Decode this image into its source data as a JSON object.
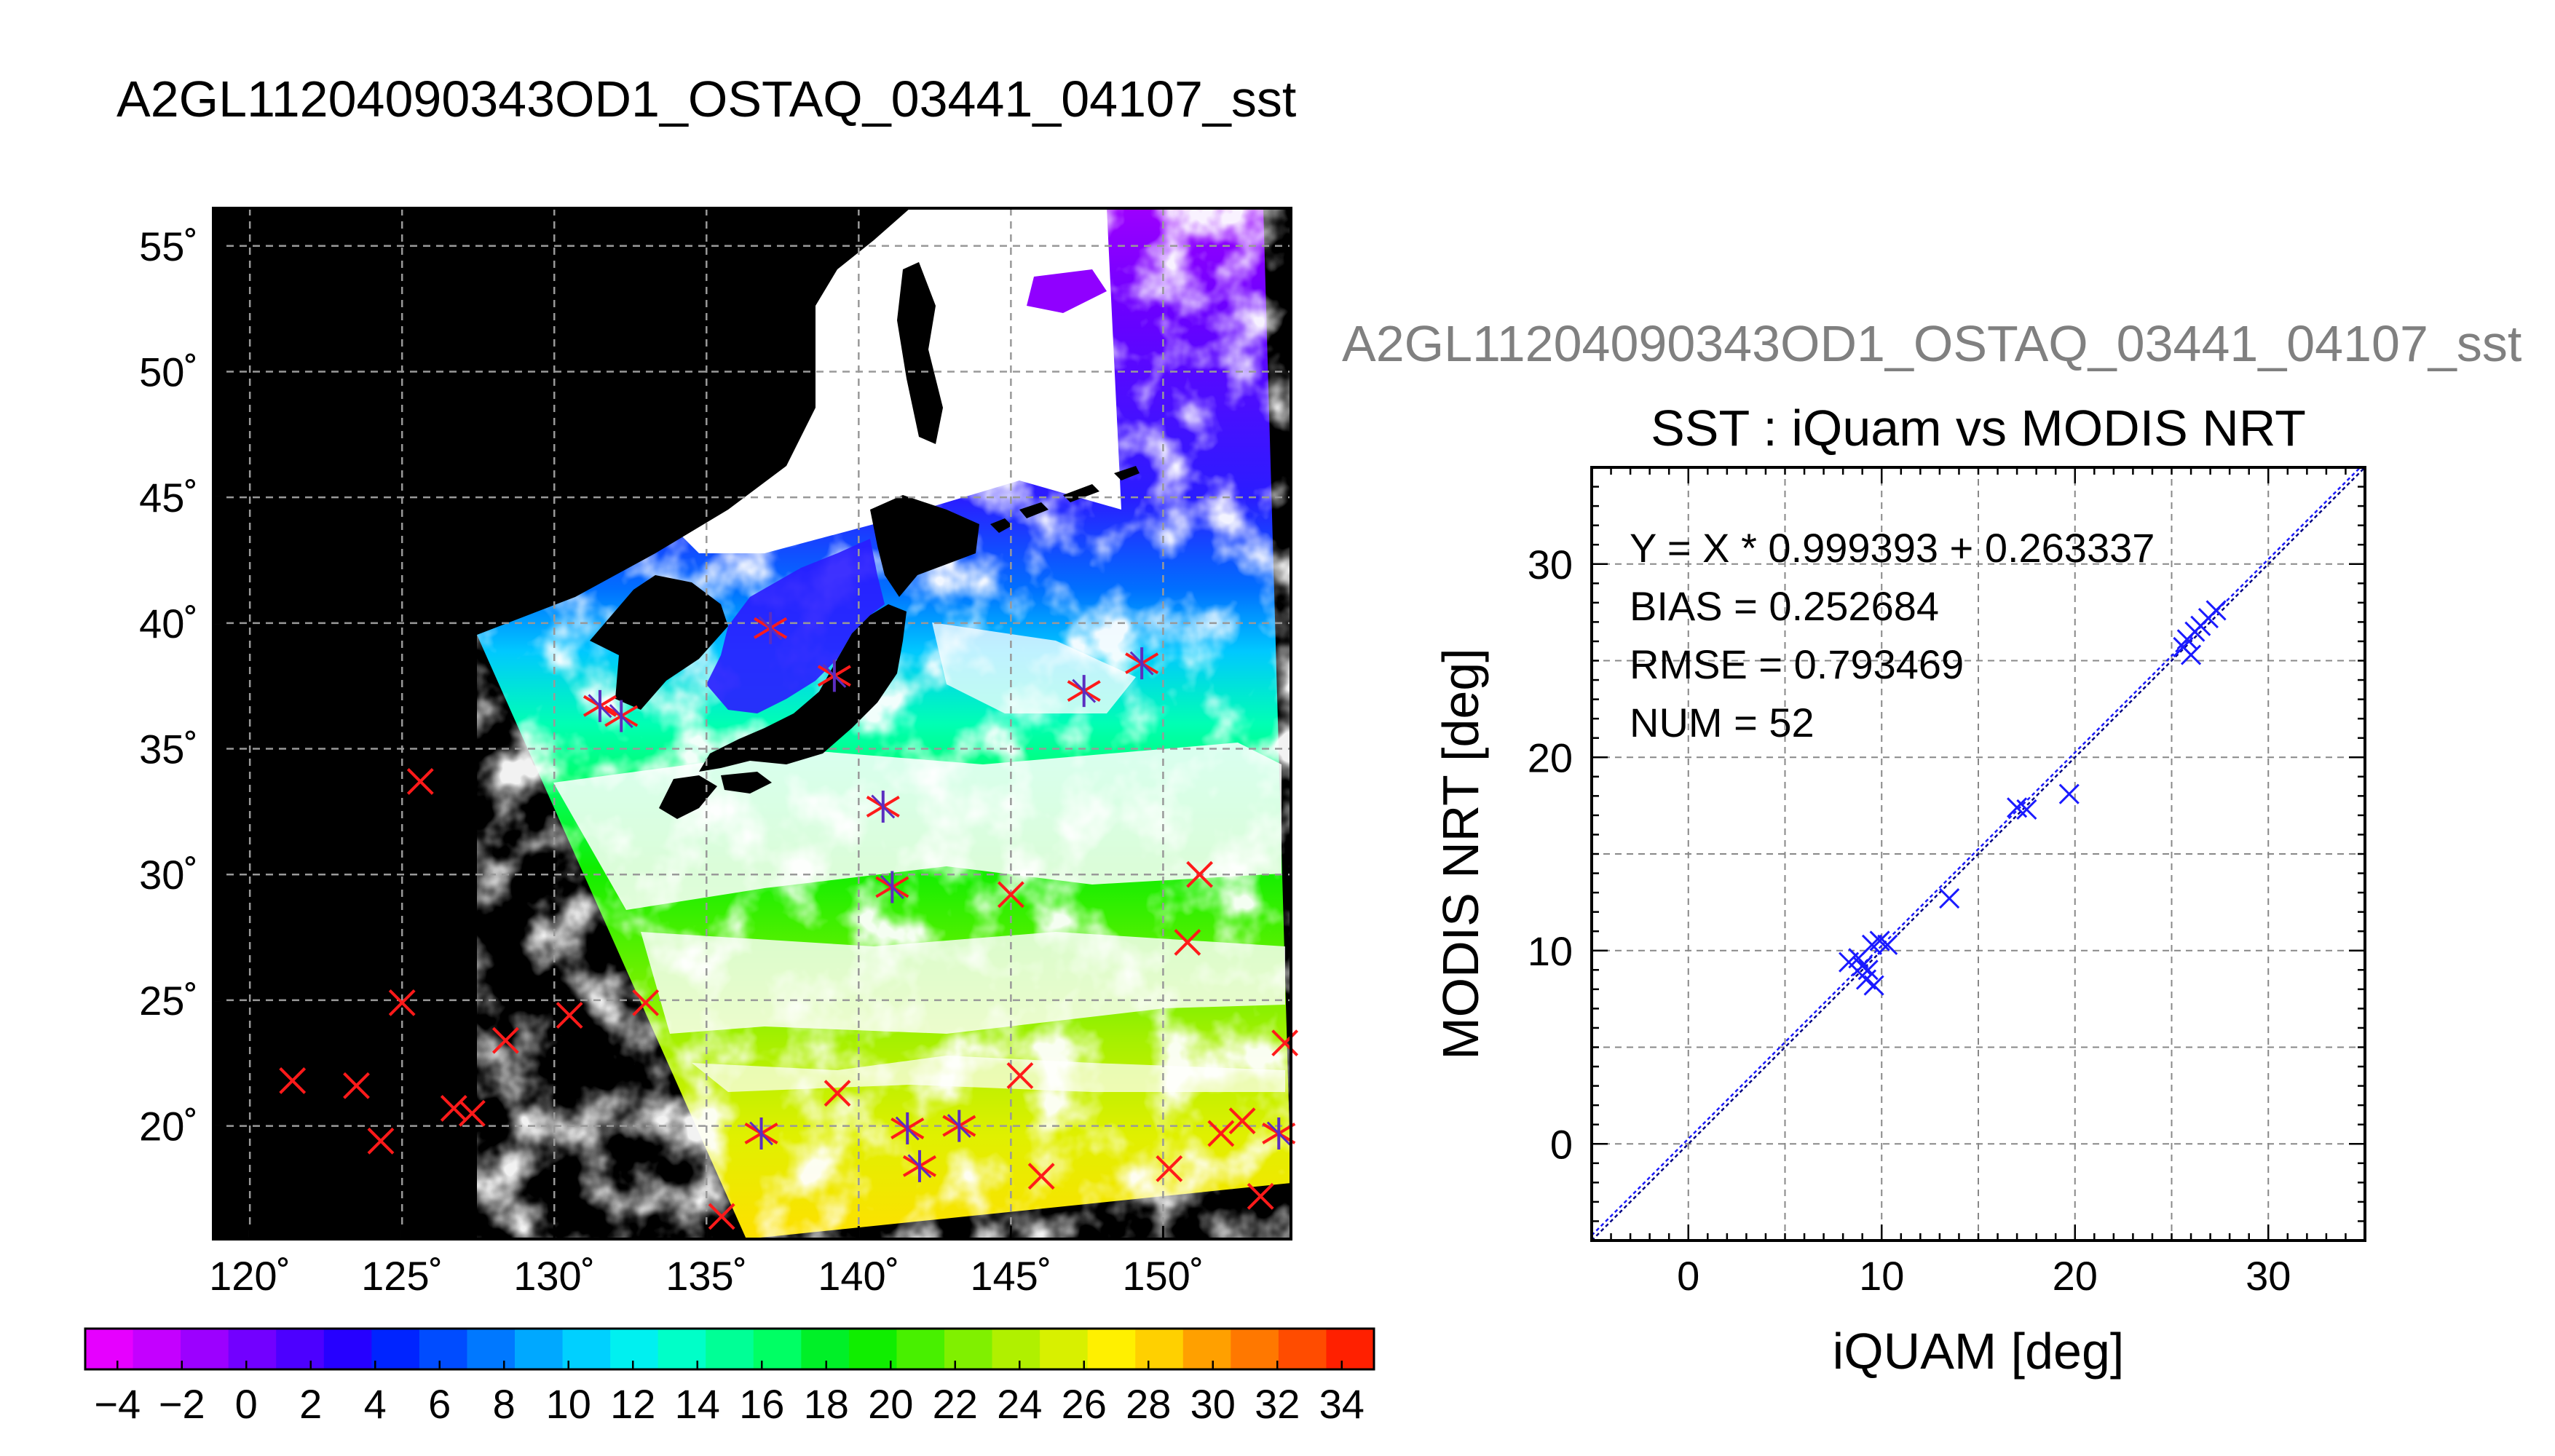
{
  "page": {
    "title": "A2GL11204090343OD1_OSTAQ_03441_04107_sst"
  },
  "map": {
    "lat_ticks": [
      55,
      50,
      45,
      40,
      35,
      30,
      25,
      20
    ],
    "lon_ticks": [
      120,
      125,
      130,
      135,
      140,
      145,
      150
    ],
    "degree_symbol": "˚",
    "lon_range": [
      118.8,
      154.2
    ],
    "lat_range": [
      15.5,
      56.5
    ],
    "grid": "dashed"
  },
  "colorbar": {
    "tick_labels": [
      "−4",
      "−2",
      "0",
      "2",
      "4",
      "6",
      "8",
      "10",
      "12",
      "14",
      "16",
      "18",
      "20",
      "22",
      "24",
      "26",
      "28",
      "30",
      "32",
      "34"
    ],
    "range": [
      -5,
      35
    ],
    "colors": [
      "#e600ff",
      "#c400ff",
      "#9c00ff",
      "#7200ff",
      "#4c00ff",
      "#2600ff",
      "#0024ff",
      "#004cff",
      "#0078ff",
      "#00a8ff",
      "#00d0ff",
      "#00f0f0",
      "#00ffc8",
      "#00ff96",
      "#00ff64",
      "#00f028",
      "#10ee00",
      "#48f000",
      "#80f000",
      "#b0f000",
      "#d8f000",
      "#fff000",
      "#ffd000",
      "#ffa000",
      "#ff7800",
      "#ff4c00",
      "#ff2000"
    ]
  },
  "scatter": {
    "header": "A2GL11204090343OD1_OSTAQ_03441_04107_sst",
    "title": "SST : iQuam vs MODIS NRT",
    "xlabel": "iQUAM [deg]",
    "ylabel": "MODIS NRT [deg]",
    "stats": [
      "Y = X * 0.999393 + 0.263337",
      "BIAS = 0.252684",
      "RMSE = 0.793469",
      "NUM = 52"
    ],
    "x_ticks": [
      "0",
      "10",
      "20",
      "30"
    ],
    "y_ticks": [
      "0",
      "10",
      "20",
      "30"
    ],
    "marker_color": "#1a1aff"
  },
  "chart_data": [
    {
      "type": "scatter",
      "title": "SST : iQuam vs MODIS NRT",
      "xlabel": "iQUAM [deg]",
      "ylabel": "MODIS NRT [deg]",
      "xlim": [
        -5,
        35
      ],
      "ylim": [
        -5,
        35
      ],
      "grid": true,
      "fit": {
        "slope": 0.999393,
        "intercept": 0.263337
      },
      "x": [
        8.3,
        8.8,
        9.0,
        9.2,
        9.3,
        9.5,
        9.6,
        9.9,
        10.3,
        13.5,
        17.0,
        17.5,
        19.7,
        25.6,
        25.8,
        26.0,
        26.2,
        26.5,
        26.9,
        27.3
      ],
      "y": [
        9.4,
        9.6,
        9.2,
        8.5,
        9.0,
        10.3,
        8.2,
        10.5,
        10.3,
        12.7,
        17.4,
        17.3,
        18.1,
        25.7,
        26.1,
        25.3,
        26.5,
        26.8,
        27.2,
        27.6
      ]
    },
    {
      "type": "scatter",
      "title": "",
      "xlabel": "",
      "ylabel": "",
      "xlim": [
        118.8,
        154.2
      ],
      "ylim": [
        15.5,
        56.5
      ],
      "series": [
        {
          "name": "",
          "x": [
            121.4,
            123.5,
            124.3,
            125.0,
            125.6,
            126.7,
            127.3,
            128.4,
            130.5,
            133.0,
            135.5,
            139.3,
            145.0,
            145.3,
            146.0,
            150.2,
            150.8,
            151.2,
            151.9,
            152.6,
            153.2,
            154.0
          ],
          "y": [
            21.8,
            21.6,
            19.4,
            24.9,
            33.7,
            20.7,
            20.5,
            23.4,
            24.4,
            24.9,
            16.4,
            21.3,
            29.2,
            22.0,
            18.0,
            18.3,
            27.3,
            30.0,
            19.7,
            20.2,
            17.2,
            23.3
          ]
        },
        {
          "name": "",
          "x": [
            131.5,
            132.2,
            136.8,
            137.1,
            139.2,
            140.8,
            141.1,
            141.6,
            142.0,
            143.3,
            147.4,
            149.3,
            153.8
          ],
          "y": [
            36.7,
            36.3,
            19.7,
            39.8,
            37.9,
            32.7,
            29.5,
            19.9,
            18.4,
            20.0,
            37.3,
            38.4,
            19.7
          ]
        }
      ]
    }
  ]
}
